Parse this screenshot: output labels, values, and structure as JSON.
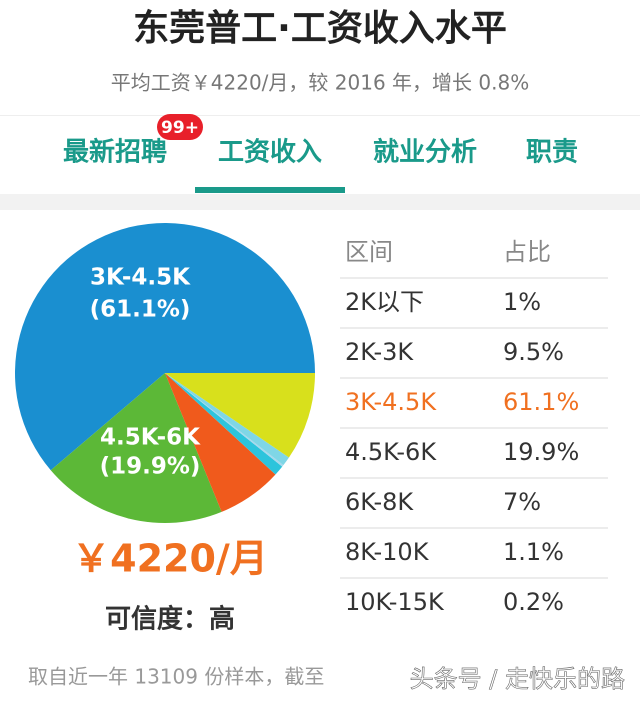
{
  "header": {
    "title": "东莞普工·工资收入水平",
    "subtitle": "平均工资￥4220/月，较 2016 年，增长 0.8%"
  },
  "tabs": [
    {
      "label": "最新招聘",
      "badge": "99+"
    },
    {
      "label": "工资收入"
    },
    {
      "label": "就业分析"
    },
    {
      "label": "职责"
    }
  ],
  "chart_data": {
    "type": "pie",
    "categories": [
      "2K以下",
      "2K-3K",
      "3K-4.5K",
      "4.5K-6K",
      "6K-8K",
      "8K-10K",
      "10K-15K"
    ],
    "values": [
      1,
      9.5,
      61.1,
      19.9,
      7,
      1.1,
      0.2
    ],
    "value_labels": [
      null,
      null,
      "(61.1%)",
      "(19.9%)",
      null,
      null,
      null
    ],
    "colors": [
      "#7fd6e6",
      "#d8e01c",
      "#1a8fd0",
      "#5cb837",
      "#f05a1c",
      "#2cc4dc",
      "#a8d8ec"
    ]
  },
  "summary": {
    "salary": "￥4220/月",
    "credibility": "可信度：高"
  },
  "table": {
    "header": [
      "区间",
      "占比"
    ],
    "rows": [
      [
        "2K以下",
        "1%"
      ],
      [
        "2K-3K",
        "9.5%"
      ],
      [
        "3K-4.5K",
        "61.1%"
      ],
      [
        "4.5K-6K",
        "19.9%"
      ],
      [
        "6K-8K",
        "7%"
      ],
      [
        "8K-10K",
        "1.1%"
      ],
      [
        "10K-15K",
        "0.2%"
      ]
    ],
    "highlight_row": 2
  },
  "footer": {
    "text": "取自近一年 13109 份样本，截至",
    "watermark": "头条号 / 走快乐的路"
  }
}
